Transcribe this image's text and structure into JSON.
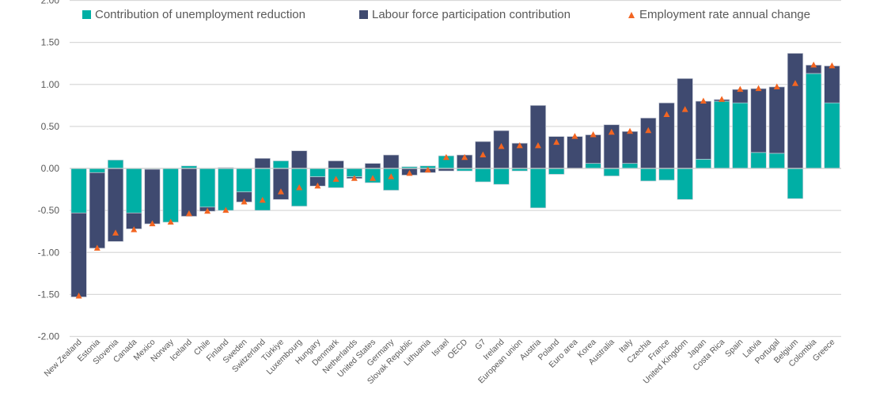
{
  "chart_data": {
    "type": "bar",
    "stacked": true,
    "title": "",
    "xlabel": "",
    "ylabel": "",
    "ylim": [
      -2.0,
      2.0
    ],
    "yticks": [
      "2.00",
      "1.50",
      "1.00",
      "0.50",
      "0.00",
      "-0.50",
      "-1.00",
      "-1.50",
      "-2.00"
    ],
    "ytick_values": [
      2.0,
      1.5,
      1.0,
      0.5,
      0.0,
      -0.5,
      -1.0,
      -1.5,
      -2.0
    ],
    "grid": true,
    "legend_position": "top",
    "categories": [
      "New Zealand",
      "Estonia",
      "Slovenia",
      "Canada",
      "Mexico",
      "Norway",
      "Iceland",
      "Chile",
      "Finland",
      "Sweden",
      "Switzerland",
      "Türkiye",
      "Luxembourg",
      "Hungary",
      "Denmark",
      "Netherlands",
      "United States",
      "Germany",
      "Slovak Republic",
      "Lithuania",
      "Israel",
      "OECD",
      "G7",
      "Ireland",
      "European union",
      "Austria",
      "Poland",
      "Euro area",
      "Korea",
      "Australia",
      "Italy",
      "Czechia",
      "France",
      "United Kingdom",
      "Japan",
      "Costa Rica",
      "Spain",
      "Latvia",
      "Portugal",
      "Belgium",
      "Colombia",
      "Greece"
    ],
    "series": [
      {
        "name": "Contribution of unemployment reduction",
        "kind": "bar",
        "color": "#00AFA5",
        "values": [
          -0.53,
          -0.05,
          0.1,
          -0.53,
          -0.01,
          -0.64,
          0.03,
          -0.46,
          -0.5,
          -0.28,
          -0.5,
          0.09,
          -0.45,
          -0.1,
          -0.23,
          -0.1,
          -0.17,
          -0.26,
          0.02,
          0.03,
          0.15,
          -0.03,
          -0.16,
          -0.19,
          -0.03,
          -0.47,
          -0.07,
          0.0,
          0.06,
          -0.09,
          0.06,
          -0.15,
          -0.14,
          -0.37,
          0.11,
          0.8,
          0.78,
          0.19,
          0.18,
          -0.36,
          1.13,
          0.78
        ]
      },
      {
        "name": "Labour force participation contribution",
        "kind": "bar",
        "color": "#3F4A70",
        "values": [
          -1.0,
          -0.9,
          -0.87,
          -0.19,
          -0.65,
          0.0,
          -0.57,
          -0.05,
          0.01,
          -0.12,
          0.12,
          -0.37,
          0.21,
          -0.11,
          0.09,
          -0.02,
          0.06,
          0.16,
          -0.08,
          -0.05,
          -0.03,
          0.16,
          0.32,
          0.45,
          0.3,
          0.75,
          0.38,
          0.38,
          0.34,
          0.52,
          0.38,
          0.6,
          0.78,
          1.07,
          0.69,
          0.02,
          0.16,
          0.76,
          0.79,
          1.37,
          0.1,
          0.44
        ]
      },
      {
        "name": "Employment rate annual change",
        "kind": "marker",
        "color": "#F26522",
        "values": [
          -1.52,
          -0.95,
          -0.77,
          -0.73,
          -0.66,
          -0.64,
          -0.54,
          -0.51,
          -0.5,
          -0.4,
          -0.38,
          -0.28,
          -0.23,
          -0.21,
          -0.13,
          -0.12,
          -0.12,
          -0.1,
          -0.06,
          -0.02,
          0.13,
          0.13,
          0.16,
          0.26,
          0.27,
          0.27,
          0.31,
          0.38,
          0.4,
          0.43,
          0.44,
          0.45,
          0.64,
          0.7,
          0.8,
          0.82,
          0.94,
          0.95,
          0.97,
          1.01,
          1.23,
          1.22
        ]
      }
    ]
  },
  "colors": {
    "gridline": "#D9D9D9",
    "axis_text": "#595959",
    "bar_outline": "#C9CDD8"
  }
}
